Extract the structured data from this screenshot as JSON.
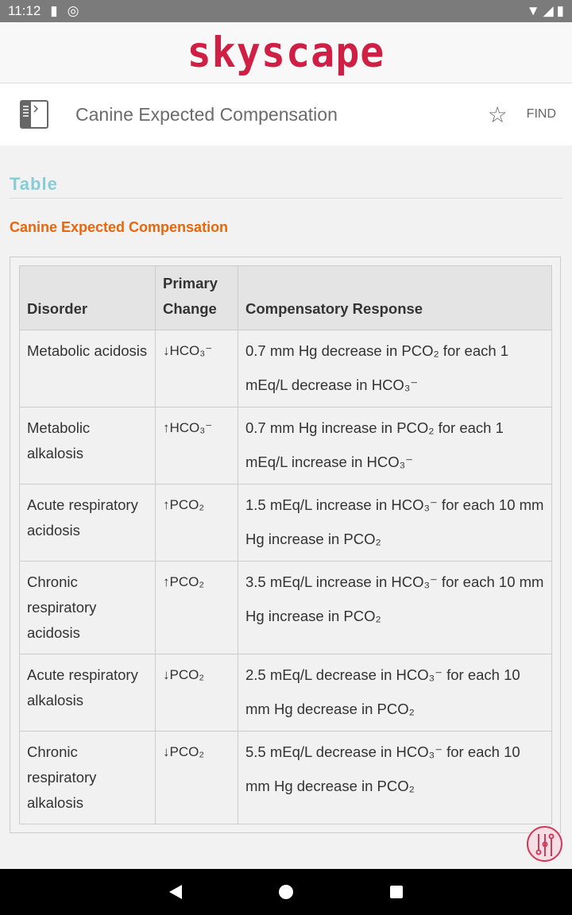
{
  "status": {
    "time": "11:12"
  },
  "brand": {
    "logo": "skyscape",
    "color": "#d01f45"
  },
  "header": {
    "title": "Canine Expected Compensation",
    "find_label": "FIND"
  },
  "section": {
    "heading": "Table",
    "subheading": "Canine Expected Compensation"
  },
  "table": {
    "headers": [
      "Disorder",
      "Primary Change",
      "Compensatory Response"
    ],
    "rows": [
      [
        "Metabolic acidosis",
        "↓HCO₃⁻",
        "0.7 mm Hg decrease in PCO₂ for each 1 mEq/L decrease in HCO₃⁻"
      ],
      [
        "Metabolic alkalosis",
        "↑HCO₃⁻",
        "0.7 mm Hg increase in PCO₂ for each 1 mEq/L increase in HCO₃⁻"
      ],
      [
        "Acute respiratory acidosis",
        "↑PCO₂",
        "1.5 mEq/L increase in HCO₃⁻ for each 10 mm Hg increase in PCO₂"
      ],
      [
        "Chronic respiratory acidosis",
        "↑PCO₂",
        "3.5 mEq/L increase in HCO₃⁻ for each 10 mm Hg increase in PCO₂"
      ],
      [
        "Acute respiratory alkalosis",
        "↓PCO₂",
        "2.5 mEq/L decrease in HCO₃⁻ for each 10 mm Hg decrease in PCO₂"
      ],
      [
        "Chronic respiratory alkalosis",
        "↓PCO₂",
        "5.5 mEq/L decrease in HCO₃⁻ for each 10 mm Hg decrease in PCO₂"
      ]
    ]
  }
}
